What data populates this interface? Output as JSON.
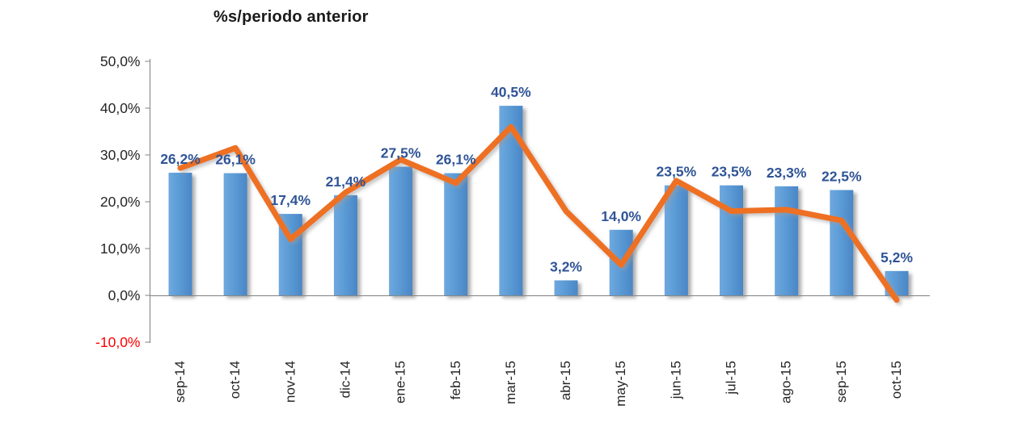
{
  "chart_data": {
    "type": "bar",
    "title": "%s/periodo anterior",
    "categories": [
      "sep-14",
      "oct-14",
      "nov-14",
      "dic-14",
      "ene-15",
      "feb-15",
      "mar-15",
      "abr-15",
      "may-15",
      "jun-15",
      "jul-15",
      "ago-15",
      "sep-15",
      "oct-15"
    ],
    "series": [
      {
        "id": "monthly-bars",
        "type": "bar",
        "color": "#5B9BD5",
        "values": [
          26.2,
          26.1,
          17.4,
          21.4,
          27.5,
          26.1,
          40.5,
          3.2,
          14.0,
          23.5,
          23.5,
          23.3,
          22.5,
          5.2
        ],
        "labels": [
          "26,2%",
          "26,1%",
          "17,4%",
          "21,4%",
          "27,5%",
          "26,1%",
          "40,5%",
          "3,2%",
          "14,0%",
          "23,5%",
          "23,5%",
          "23,3%",
          "22,5%",
          "5,2%"
        ],
        "label_color": "#2F5496"
      },
      {
        "id": "trend-line",
        "type": "line",
        "color": "#EE7020",
        "values": [
          27.2,
          31.5,
          12.0,
          22.0,
          29.0,
          24.0,
          36.0,
          18.0,
          6.5,
          24.5,
          18.0,
          18.3,
          16.0,
          -1.0
        ],
        "values_note": "estimated from pixels; line series has no printed data labels"
      }
    ],
    "y_axis": {
      "min": -10,
      "max": 50,
      "step": 10,
      "tick_values": [
        50,
        40,
        30,
        20,
        10,
        0,
        -10
      ],
      "tick_labels": [
        "50,0%",
        "40,0%",
        "30,0%",
        "20,0%",
        "10,0%",
        "0,0%",
        "-10,0%"
      ],
      "label_color": "#262626",
      "negative_label_color": "#FF0000"
    },
    "x_axis": {
      "label_color": "#262626",
      "label_rotation_deg": -90
    },
    "axis_color": "#808080",
    "grid": false,
    "legend": "none",
    "ylim": [
      -10,
      50
    ]
  }
}
